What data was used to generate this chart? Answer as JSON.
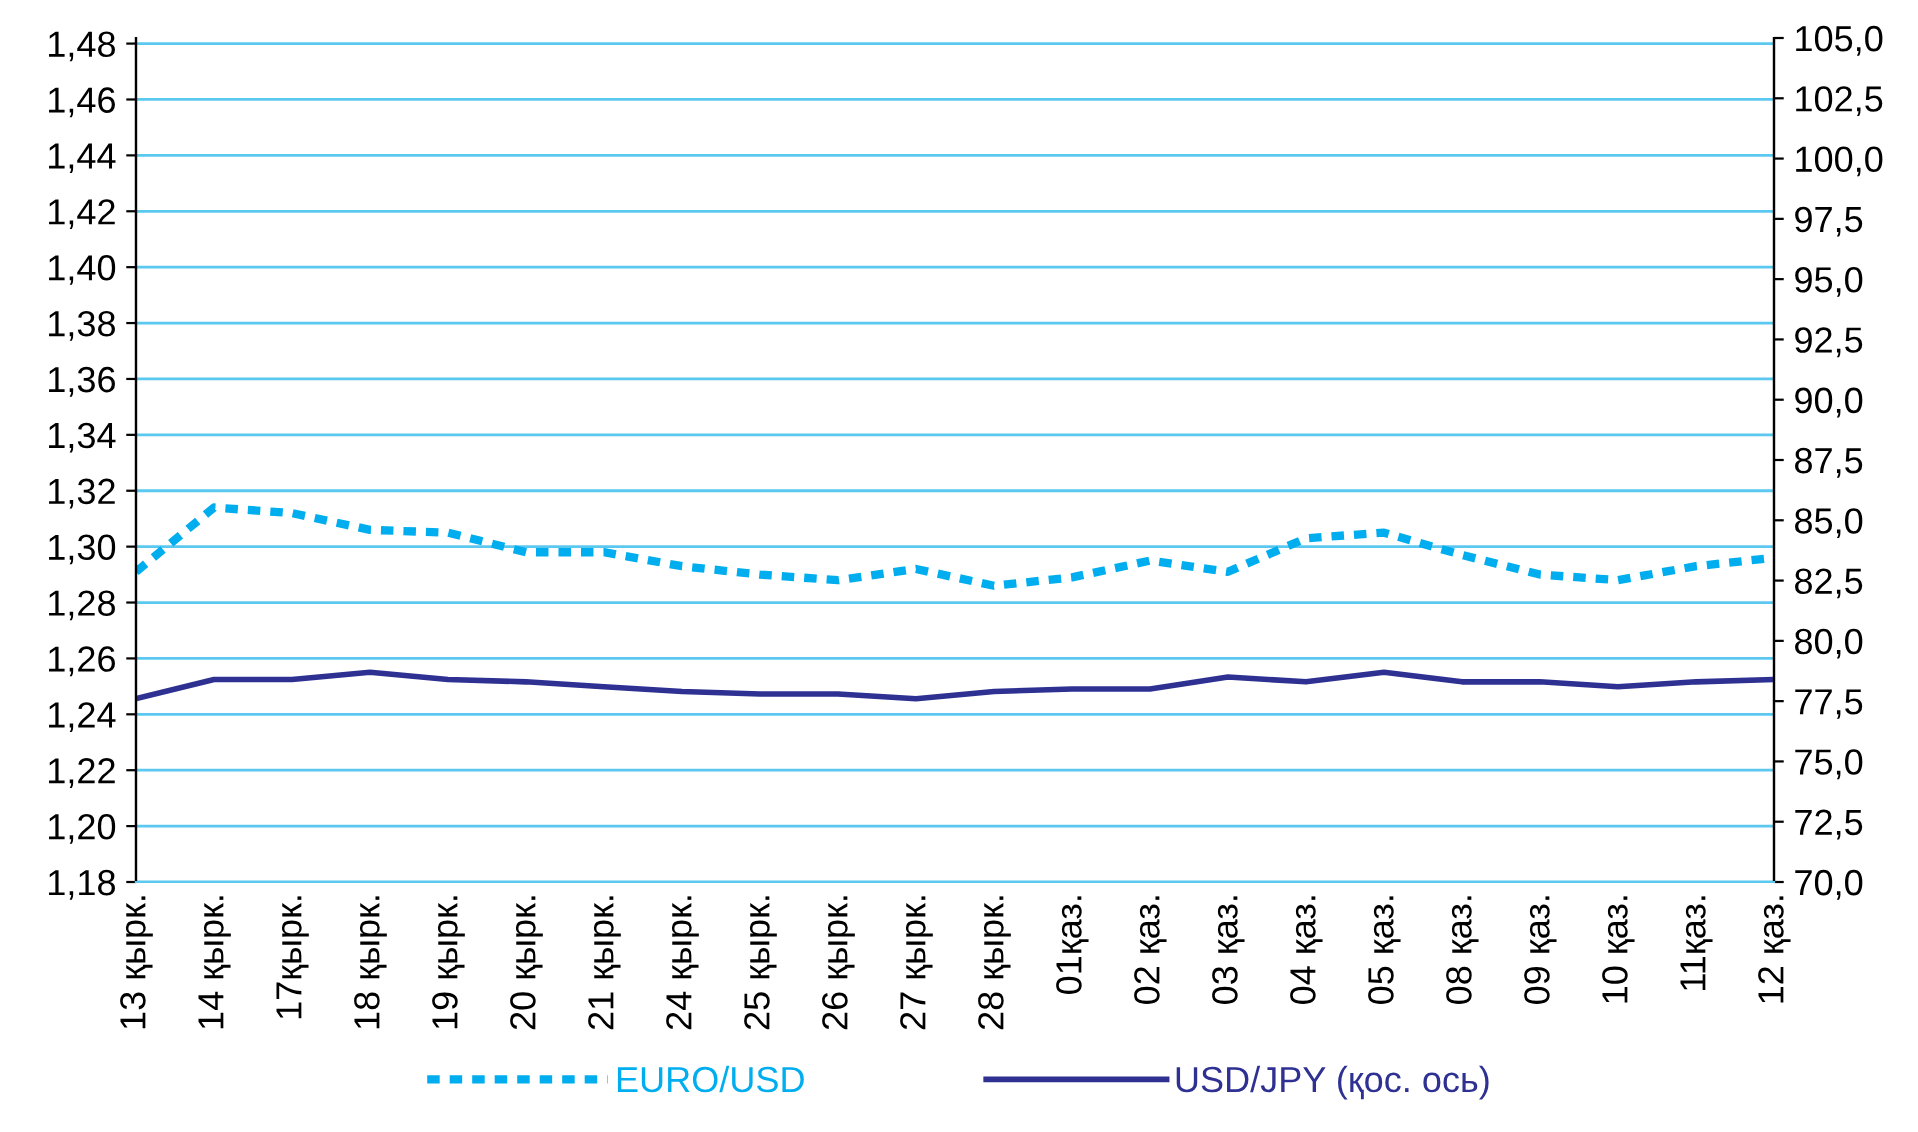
{
  "chart_data": {
    "type": "line",
    "categories": [
      "13 қырк.",
      "14 қырк.",
      "17қырк.",
      "18 қырк.",
      "19 қырк.",
      "20 қырк.",
      "21 қырк.",
      "24 қырк.",
      "25 қырк.",
      "26 қырк.",
      "27 қырк.",
      "28 қырк.",
      "01қаз.",
      "02 қаз.",
      "03 қаз.",
      "04 қаз.",
      "05 қаз.",
      "08 қаз.",
      "09 қаз.",
      "10 қаз.",
      "11қаз.",
      "12 қаз."
    ],
    "series": [
      {
        "name": "EURO/USD",
        "color": "#00aeef",
        "line_style": "dotted",
        "values": [
          1.291,
          1.314,
          1.312,
          1.306,
          1.305,
          1.298,
          1.298,
          1.293,
          1.29,
          1.288,
          1.292,
          1.286,
          1.289,
          1.295,
          1.291,
          1.303,
          1.305,
          1.297,
          1.29,
          1.288,
          1.293,
          1.296
        ]
      },
      {
        "name": "USD/JPY (қос. ось)",
        "color": "#2e3192",
        "line_style": "solid",
        "axis": "y2",
        "values": [
          77.6,
          78.4,
          78.4,
          78.7,
          78.4,
          78.3,
          78.1,
          77.9,
          77.8,
          77.8,
          77.6,
          77.9,
          78.0,
          78.0,
          78.5,
          78.3,
          78.7,
          78.3,
          78.3,
          78.1,
          78.3,
          78.4
        ]
      }
    ],
    "ylim": [
      1.18,
      1.482
    ],
    "yticks": [
      {
        "value": 1.18,
        "label": "1,18"
      },
      {
        "value": 1.2,
        "label": "1,20"
      },
      {
        "value": 1.22,
        "label": "1,22"
      },
      {
        "value": 1.24,
        "label": "1,24"
      },
      {
        "value": 1.26,
        "label": "1,26"
      },
      {
        "value": 1.28,
        "label": "1,28"
      },
      {
        "value": 1.3,
        "label": "1,30"
      },
      {
        "value": 1.32,
        "label": "1,32"
      },
      {
        "value": 1.34,
        "label": "1,34"
      },
      {
        "value": 1.36,
        "label": "1,36"
      },
      {
        "value": 1.38,
        "label": "1,38"
      },
      {
        "value": 1.4,
        "label": "1,40"
      },
      {
        "value": 1.42,
        "label": "1,42"
      },
      {
        "value": 1.44,
        "label": "1,44"
      },
      {
        "value": 1.46,
        "label": "1,46"
      },
      {
        "value": 1.48,
        "label": "1,48"
      }
    ],
    "y2lim": [
      70,
      105
    ],
    "y2ticks": [
      {
        "value": 70,
        "label": "70,0"
      },
      {
        "value": 72.5,
        "label": "72,5"
      },
      {
        "value": 75,
        "label": "75,0"
      },
      {
        "value": 77.5,
        "label": "77,5"
      },
      {
        "value": 80,
        "label": "80,0"
      },
      {
        "value": 82.5,
        "label": "82,5"
      },
      {
        "value": 85,
        "label": "85,0"
      },
      {
        "value": 87.5,
        "label": "87,5"
      },
      {
        "value": 90,
        "label": "90,0"
      },
      {
        "value": 92.5,
        "label": "92,5"
      },
      {
        "value": 95,
        "label": "95,0"
      },
      {
        "value": 97.5,
        "label": "97,5"
      },
      {
        "value": 100,
        "label": "100,0"
      },
      {
        "value": 102.5,
        "label": "102,5"
      },
      {
        "value": 105,
        "label": "105,0"
      }
    ],
    "grid": "y",
    "legend": "bottom",
    "marker": "none"
  }
}
